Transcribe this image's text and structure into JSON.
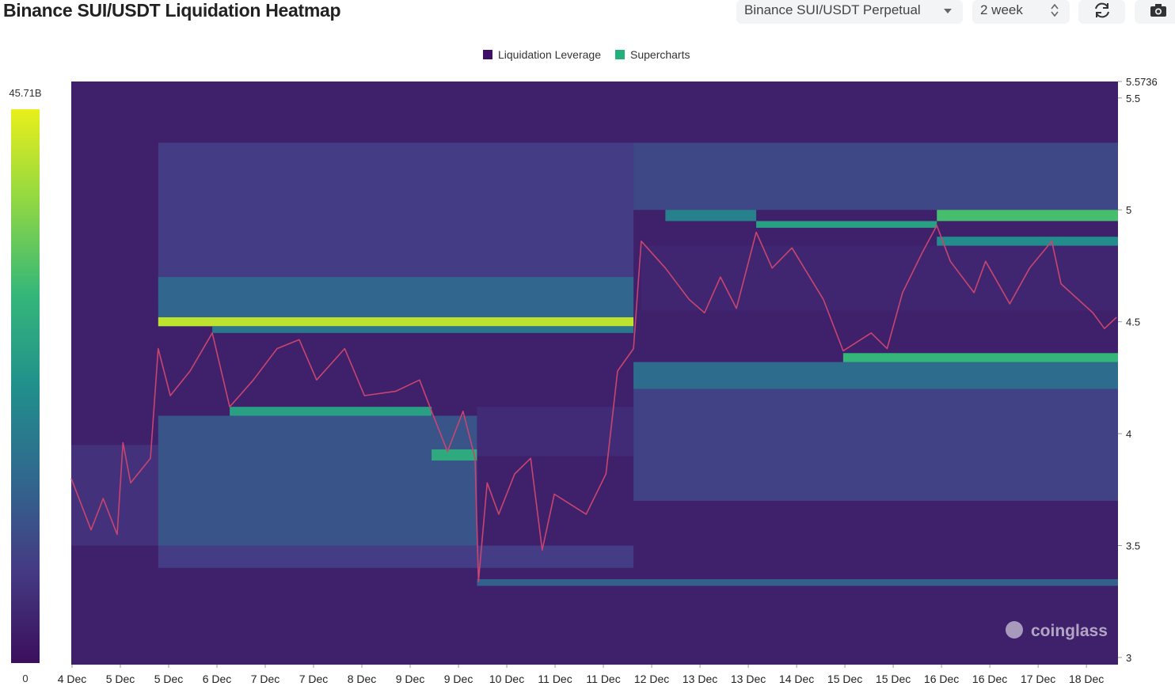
{
  "header": {
    "title": "Binance SUI/USDT Liquidation Heatmap",
    "pair_select": "Binance SUI/USDT Perpetual",
    "range_select": "2 week"
  },
  "chart_data": {
    "type": "heatmap",
    "legend": [
      {
        "name": "Liquidation Leverage",
        "color": "#3f1068"
      },
      {
        "name": "Supercharts",
        "color": "#22b07d"
      }
    ],
    "colorscale": [
      "#3b0f5c",
      "#453a83",
      "#30688e",
      "#21908c",
      "#35b779",
      "#90d743",
      "#e8ef1b"
    ],
    "colorbar": {
      "min": 0,
      "max": {
        "value": 45.71,
        "label": "45.71B"
      }
    },
    "ylim": [
      2.968,
      5.5736
    ],
    "yticks": [
      3,
      3.5,
      4,
      4.5,
      5,
      5.5,
      5.5736
    ],
    "xlim": [
      0,
      21.67
    ],
    "xticks": [
      {
        "value": 0,
        "label": "4 Dec"
      },
      {
        "value": 1,
        "label": "5 Dec"
      },
      {
        "value": 2,
        "label": "5 Dec"
      },
      {
        "value": 3,
        "label": "6 Dec"
      },
      {
        "value": 4,
        "label": "7 Dec"
      },
      {
        "value": 5,
        "label": "7 Dec"
      },
      {
        "value": 6,
        "label": "8 Dec"
      },
      {
        "value": 7,
        "label": "9 Dec"
      },
      {
        "value": 8,
        "label": "9 Dec"
      },
      {
        "value": 9,
        "label": "10 Dec"
      },
      {
        "value": 10,
        "label": "11 Dec"
      },
      {
        "value": 11,
        "label": "11 Dec"
      },
      {
        "value": 12,
        "label": "12 Dec"
      },
      {
        "value": 13,
        "label": "13 Dec"
      },
      {
        "value": 14,
        "label": "13 Dec"
      },
      {
        "value": 15,
        "label": "14 Dec"
      },
      {
        "value": 16,
        "label": "15 Dec"
      },
      {
        "value": 17,
        "label": "15 Dec"
      },
      {
        "value": 18,
        "label": "16 Dec"
      },
      {
        "value": 19,
        "label": "16 Dec"
      },
      {
        "value": 20,
        "label": "17 Dec"
      },
      {
        "value": 21,
        "label": "18 Dec"
      }
    ],
    "cells": [
      {
        "x0": 0,
        "x1": 21.67,
        "y0": 2.968,
        "y1": 5.5736,
        "value": 3
      },
      {
        "x0": 0,
        "x1": 1.8,
        "y0": 3.5,
        "y1": 3.95,
        "value": 6
      },
      {
        "x0": 1.8,
        "x1": 11.64,
        "y0": 4.6,
        "y1": 5.3,
        "value": 8
      },
      {
        "x0": 1.8,
        "x1": 11.64,
        "y0": 4.52,
        "y1": 4.7,
        "value": 15
      },
      {
        "x0": 1.8,
        "x1": 11.64,
        "y0": 4.48,
        "y1": 4.52,
        "value": 42
      },
      {
        "x0": 2.92,
        "x1": 11.64,
        "y0": 4.45,
        "y1": 4.48,
        "value": 18
      },
      {
        "x0": 1.8,
        "x1": 8.4,
        "y0": 3.5,
        "y1": 4.08,
        "value": 12
      },
      {
        "x0": 1.8,
        "x1": 11.64,
        "y0": 3.4,
        "y1": 3.5,
        "value": 8
      },
      {
        "x0": 3.28,
        "x1": 7.46,
        "y0": 4.08,
        "y1": 4.12,
        "value": 26
      },
      {
        "x0": 7.46,
        "x1": 8.4,
        "y0": 3.88,
        "y1": 3.93,
        "value": 28
      },
      {
        "x0": 8.4,
        "x1": 11.64,
        "y0": 3.9,
        "y1": 4.12,
        "value": 5
      },
      {
        "x0": 8.4,
        "x1": 21.67,
        "y0": 3.32,
        "y1": 3.35,
        "value": 14
      },
      {
        "x0": 11.64,
        "x1": 21.67,
        "y0": 3.7,
        "y1": 4.2,
        "value": 9
      },
      {
        "x0": 11.64,
        "x1": 21.67,
        "y0": 4.2,
        "y1": 4.32,
        "value": 16
      },
      {
        "x0": 15.98,
        "x1": 21.67,
        "y0": 4.32,
        "y1": 4.36,
        "value": 30
      },
      {
        "x0": 11.64,
        "x1": 21.67,
        "y0": 5.0,
        "y1": 5.3,
        "value": 10
      },
      {
        "x0": 11.8,
        "x1": 21.67,
        "y0": 4.55,
        "y1": 4.84,
        "value": 4
      },
      {
        "x0": 12.3,
        "x1": 14.18,
        "y0": 4.95,
        "y1": 5.0,
        "value": 20
      },
      {
        "x0": 14.18,
        "x1": 17.92,
        "y0": 4.92,
        "y1": 4.95,
        "value": 26
      },
      {
        "x0": 17.92,
        "x1": 21.67,
        "y0": 4.95,
        "y1": 5.0,
        "value": 32
      },
      {
        "x0": 17.92,
        "x1": 21.67,
        "y0": 4.84,
        "y1": 4.88,
        "value": 22
      }
    ],
    "price": {
      "color": "#c8456f",
      "x": [
        0,
        0.41,
        0.66,
        0.95,
        1.07,
        1.23,
        1.64,
        1.8,
        2.05,
        2.46,
        2.92,
        3.28,
        3.77,
        4.26,
        4.72,
        5.08,
        5.66,
        6.07,
        6.72,
        7.21,
        7.46,
        7.79,
        8.11,
        8.36,
        8.43,
        8.61,
        8.85,
        9.18,
        9.51,
        9.75,
        10,
        10.66,
        11.07,
        11.31,
        11.64,
        11.8,
        12.3,
        12.79,
        13.11,
        13.44,
        13.77,
        14.18,
        14.51,
        14.92,
        15.57,
        15.98,
        16.56,
        16.89,
        17.21,
        17.62,
        17.92,
        18.2,
        18.69,
        18.93,
        19.43,
        19.84,
        20.3,
        20.49,
        21.15,
        21.39,
        21.64
      ],
      "values": [
        3.8,
        3.57,
        3.71,
        3.55,
        3.96,
        3.78,
        3.89,
        4.38,
        4.17,
        4.28,
        4.45,
        4.12,
        4.24,
        4.38,
        4.42,
        4.24,
        4.38,
        4.17,
        4.19,
        4.24,
        4.1,
        3.92,
        4.1,
        3.89,
        3.34,
        3.78,
        3.64,
        3.82,
        3.89,
        3.48,
        3.73,
        3.64,
        3.82,
        4.28,
        4.38,
        4.86,
        4.74,
        4.6,
        4.54,
        4.7,
        4.56,
        4.9,
        4.74,
        4.83,
        4.6,
        4.37,
        4.45,
        4.38,
        4.63,
        4.81,
        4.93,
        4.77,
        4.63,
        4.77,
        4.58,
        4.74,
        4.86,
        4.67,
        4.54,
        4.47,
        4.52
      ]
    },
    "watermark": "coinglass"
  }
}
